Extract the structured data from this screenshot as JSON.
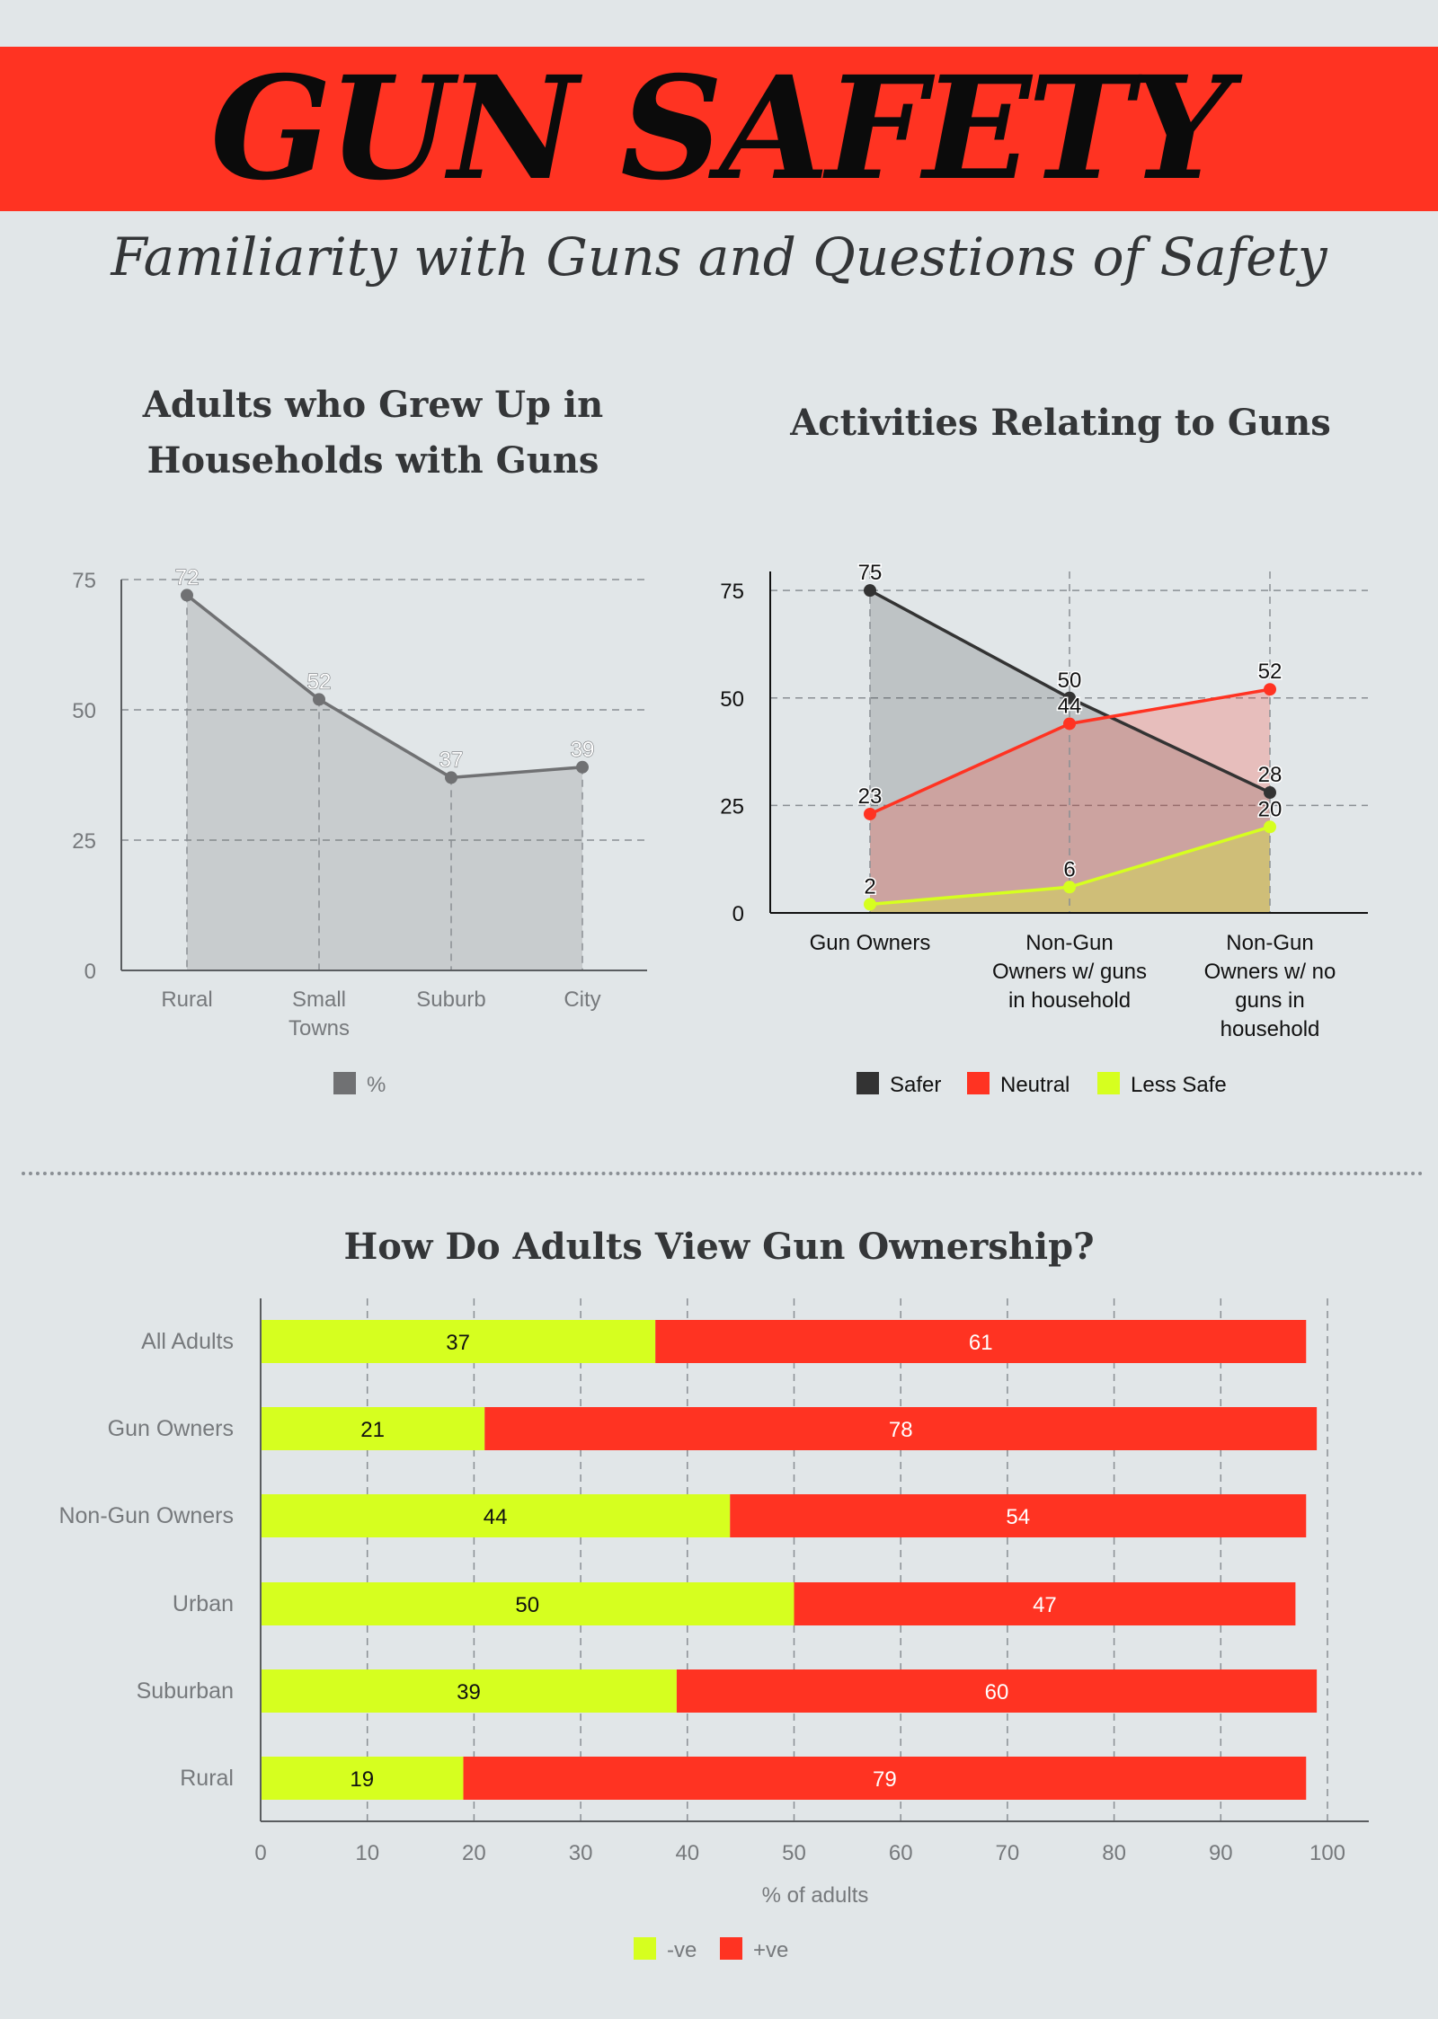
{
  "header": {
    "title": "GUN SAFETY",
    "subtitle": "Familiarity with Guns and Questions of Safety"
  },
  "colors": {
    "banner": "#ff3322",
    "background": "#e1e6e8",
    "gray_series": "#707173",
    "safer": "#333333",
    "neutral": "#ff3322",
    "less_safe": "#d6ff1f"
  },
  "chart_data": [
    {
      "type": "area",
      "title_line1": "Adults who Grew Up in",
      "title_line2": "Households with Guns",
      "categories": [
        "Rural",
        "Small Towns",
        "Suburb",
        "City"
      ],
      "category_lines": [
        [
          "Rural"
        ],
        [
          "Small",
          "Towns"
        ],
        [
          "Suburb"
        ],
        [
          "City"
        ]
      ],
      "series": [
        {
          "name": "%",
          "values": [
            72,
            52,
            37,
            39
          ],
          "color": "#707173"
        }
      ],
      "ylim": [
        0,
        75
      ],
      "yticks": [
        0,
        25,
        50,
        75
      ],
      "grid": true,
      "legend": "bottom-center"
    },
    {
      "type": "area",
      "title": "Activities Relating to Guns",
      "categories": [
        "Gun Owners",
        "Non-Gun Owners w/ guns in household",
        "Non-Gun Owners w/ no guns in household"
      ],
      "category_lines": [
        [
          "Gun Owners"
        ],
        [
          "Non-Gun",
          "Owners w/ guns",
          "in household"
        ],
        [
          "Non-Gun",
          "Owners w/ no",
          "guns in",
          "household"
        ]
      ],
      "series": [
        {
          "name": "Safer",
          "values": [
            75,
            50,
            28
          ],
          "color": "#333333"
        },
        {
          "name": "Neutral",
          "values": [
            23,
            44,
            52
          ],
          "color": "#ff3322"
        },
        {
          "name": "Less Safe",
          "values": [
            2,
            6,
            20
          ],
          "color": "#d6ff1f"
        }
      ],
      "ylim": [
        0,
        79
      ],
      "yticks": [
        0,
        25,
        50,
        75
      ],
      "grid": true,
      "legend": "bottom-center"
    },
    {
      "type": "bar",
      "orientation": "horizontal",
      "stacked": true,
      "title": "How Do Adults View Gun Ownership?",
      "categories": [
        "All Adults",
        "Gun Owners",
        "Non-Gun Owners",
        "Urban",
        "Suburban",
        "Rural"
      ],
      "series": [
        {
          "name": "-ve",
          "values": [
            37,
            21,
            44,
            50,
            39,
            19
          ],
          "color": "#d6ff1f"
        },
        {
          "name": "+ve",
          "values": [
            61,
            78,
            54,
            47,
            60,
            79
          ],
          "color": "#ff3322"
        }
      ],
      "xlabel": "% of adults",
      "xlim": [
        0,
        100
      ],
      "xticks": [
        0,
        10,
        20,
        30,
        40,
        50,
        60,
        70,
        80,
        90,
        100
      ],
      "grid": true,
      "legend": "bottom-center"
    }
  ]
}
